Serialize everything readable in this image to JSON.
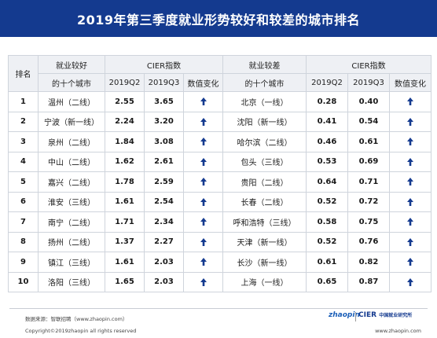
{
  "title": "2019年第三季度就业形势较好和较差的城市排名",
  "headers": {
    "rank": "排名",
    "good_cities_line1": "就业较好",
    "good_cities_line2": "的十个城市",
    "cier_index": "CIER指数",
    "q2": "2019Q2",
    "q3": "2019Q3",
    "change": "数值变化",
    "bad_cities_line1": "就业较差",
    "bad_cities_line2": "的十个城市"
  },
  "rows": [
    {
      "rank": "1",
      "good_city": "温州（二线）",
      "good_q2": "2.55",
      "good_q3": "3.65",
      "bad_city": "北京（一线）",
      "bad_q2": "0.28",
      "bad_q3": "0.40"
    },
    {
      "rank": "2",
      "good_city": "宁波（新一线）",
      "good_q2": "2.24",
      "good_q3": "3.20",
      "bad_city": "沈阳（新一线）",
      "bad_q2": "0.41",
      "bad_q3": "0.54"
    },
    {
      "rank": "3",
      "good_city": "泉州（二线）",
      "good_q2": "1.84",
      "good_q3": "3.08",
      "bad_city": "哈尔滨（二线）",
      "bad_q2": "0.46",
      "bad_q3": "0.61"
    },
    {
      "rank": "4",
      "good_city": "中山（二线）",
      "good_q2": "1.62",
      "good_q3": "2.61",
      "bad_city": "包头（三线）",
      "bad_q2": "0.53",
      "bad_q3": "0.69"
    },
    {
      "rank": "5",
      "good_city": "嘉兴（二线）",
      "good_q2": "1.78",
      "good_q3": "2.59",
      "bad_city": "贵阳（二线）",
      "bad_q2": "0.64",
      "bad_q3": "0.71"
    },
    {
      "rank": "6",
      "good_city": "淮安（三线）",
      "good_q2": "1.61",
      "good_q3": "2.54",
      "bad_city": "长春（二线）",
      "bad_q2": "0.52",
      "bad_q3": "0.72"
    },
    {
      "rank": "7",
      "good_city": "南宁（二线）",
      "good_q2": "1.71",
      "good_q3": "2.34",
      "bad_city": "呼和浩特（三线）",
      "bad_q2": "0.58",
      "bad_q3": "0.75"
    },
    {
      "rank": "8",
      "good_city": "扬州（二线）",
      "good_q2": "1.37",
      "good_q3": "2.27",
      "bad_city": "天津（新一线）",
      "bad_q2": "0.52",
      "bad_q3": "0.76"
    },
    {
      "rank": "9",
      "good_city": "镇江（三线）",
      "good_q2": "1.61",
      "good_q3": "2.03",
      "bad_city": "长沙（新一线）",
      "bad_q2": "0.61",
      "bad_q3": "0.82"
    },
    {
      "rank": "10",
      "good_city": "洛阳（三线）",
      "good_q2": "1.65",
      "good_q3": "2.03",
      "bad_city": "上海（一线）",
      "bad_q2": "0.65",
      "bad_q3": "0.87"
    }
  ],
  "change_icon": "up-arrow-icon",
  "colors": {
    "banner": "#143a8f",
    "arrow": "#143a8f",
    "header_bg": "#eef0f4"
  },
  "footer": {
    "source": "数据来源：智联招聘（www.zhaopin.com）",
    "copyright": "Copyright©2019zhaopin all rights reserved",
    "url": "www.zhaopin.com",
    "logo_zhaopin": "zhaopin",
    "logo_cier": "CIER",
    "logo_cier_sub": "中国就业研究所"
  }
}
